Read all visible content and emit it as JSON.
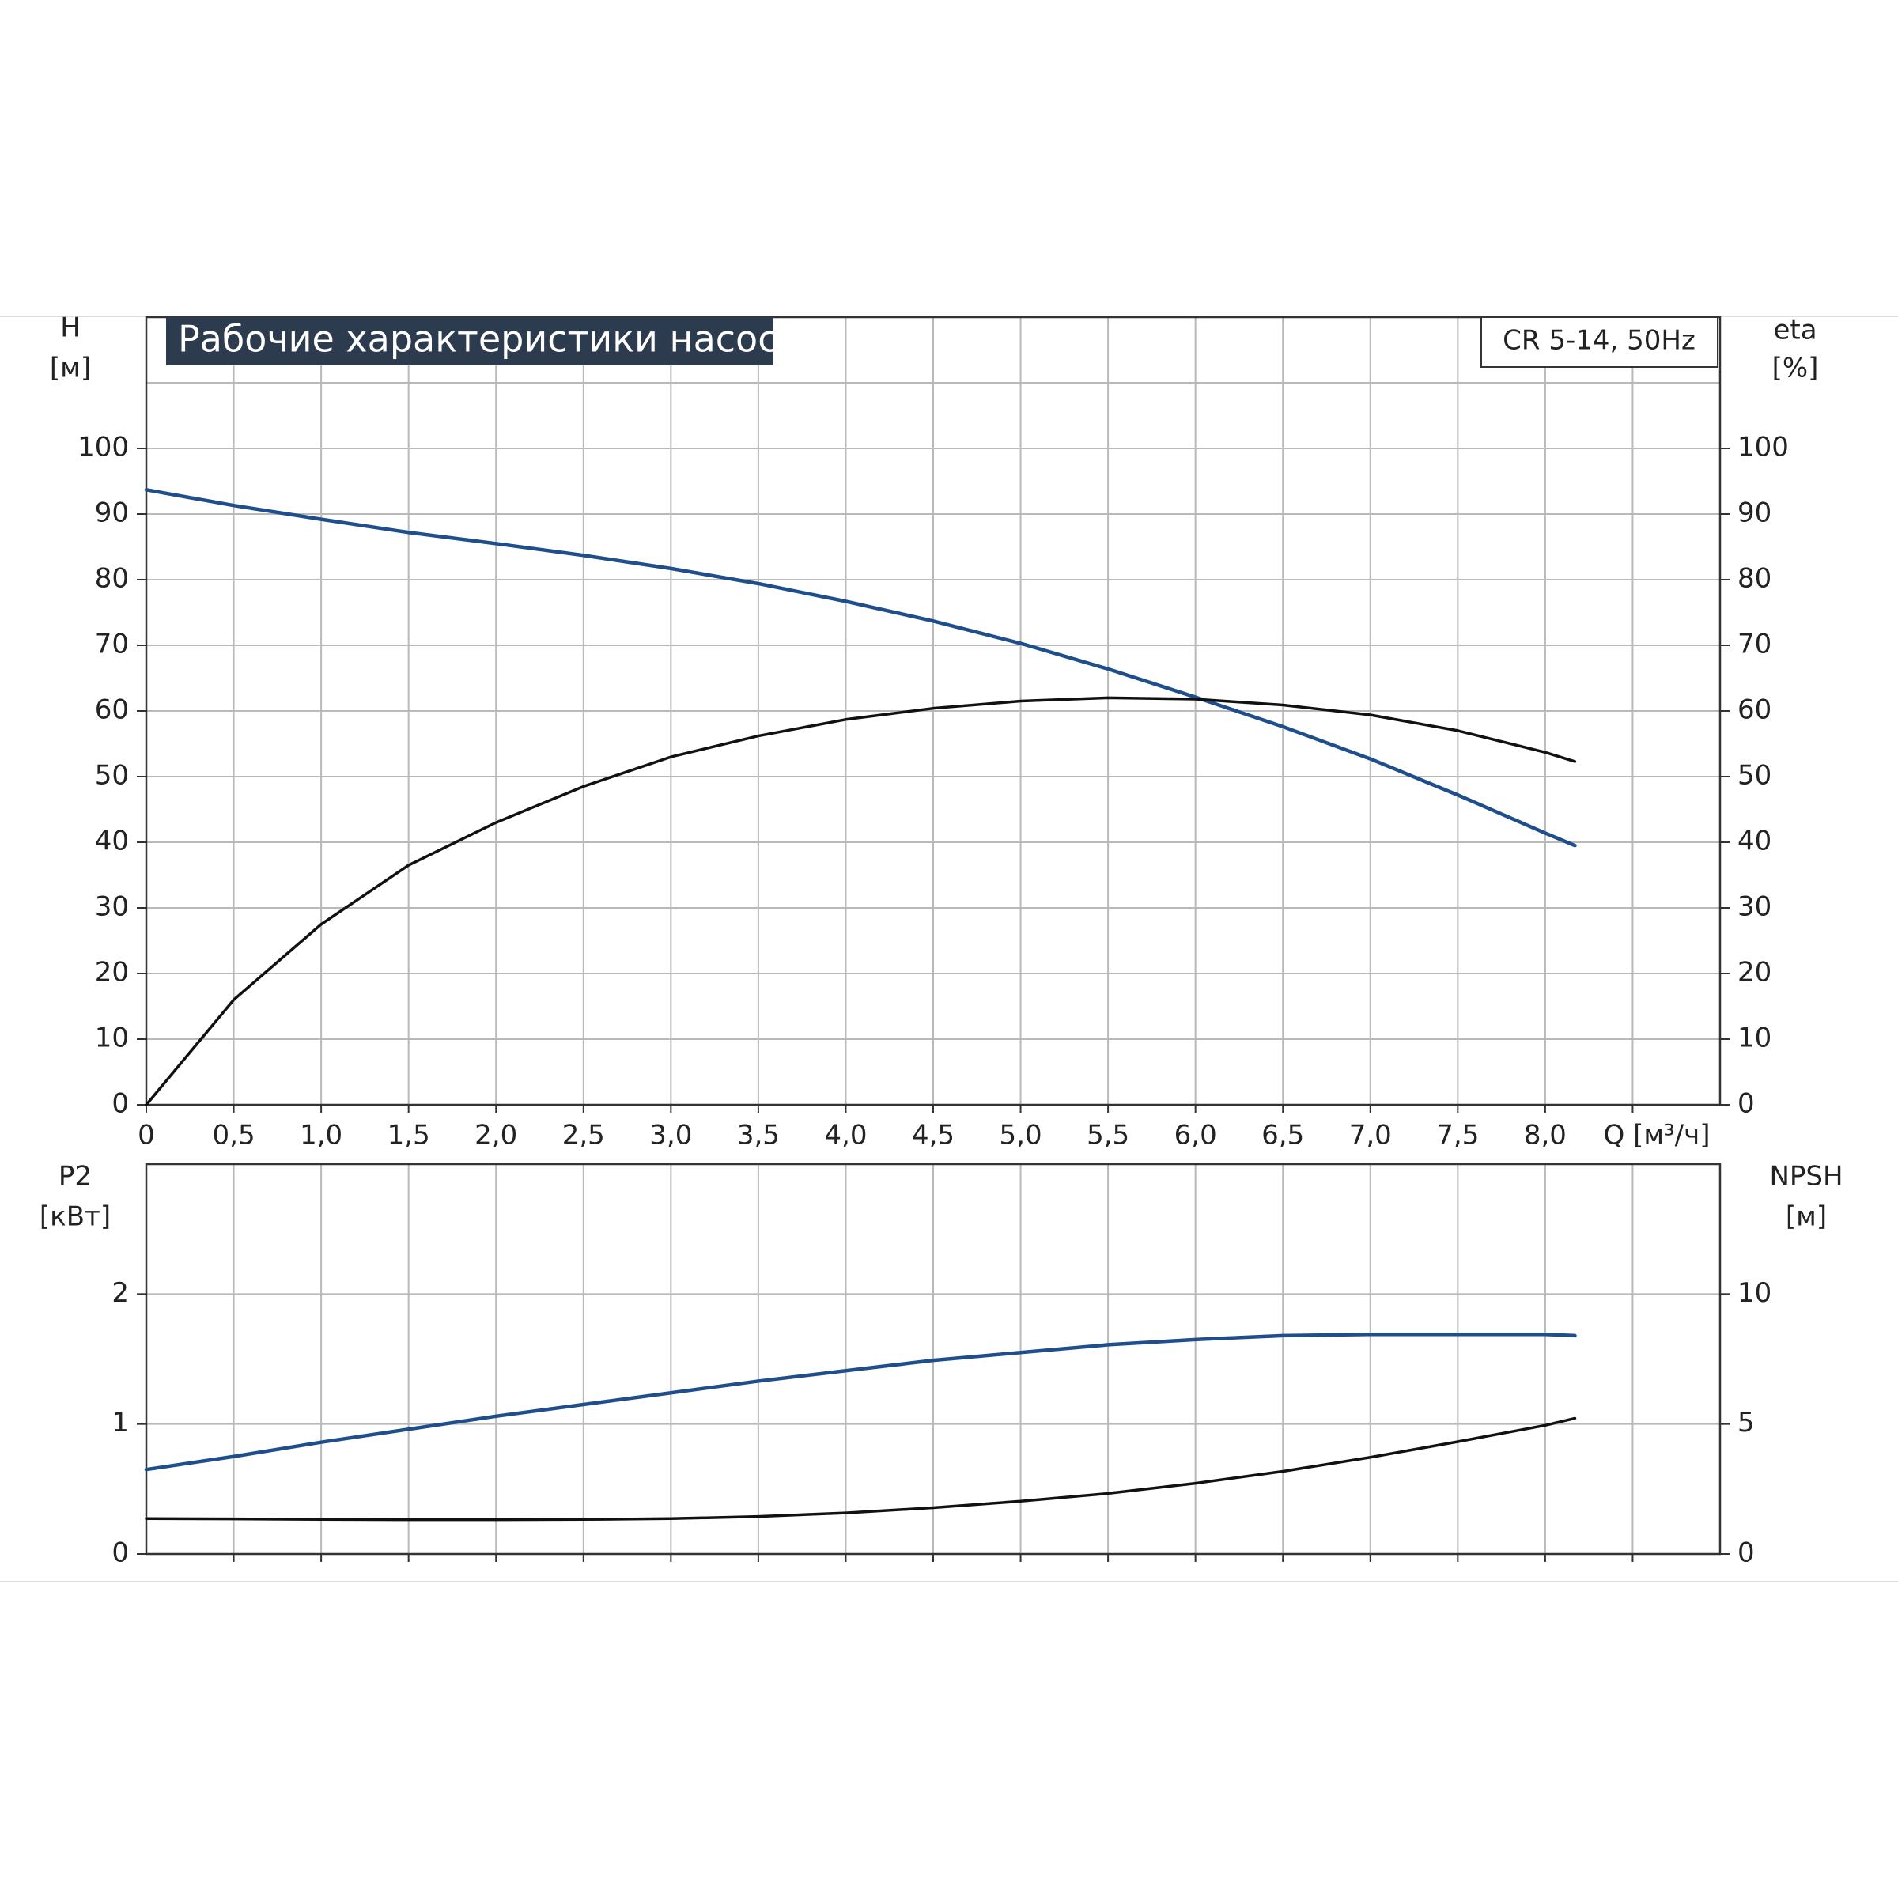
{
  "chart_data": [
    {
      "type": "line",
      "title": "Рабочие характеристики насоса",
      "annotation": "CR 5-14, 50Hz",
      "ylabel": "H",
      "yunit": "[м]",
      "y2label": "eta",
      "y2unit": "[%]",
      "xlabel": "Q [м³/ч]",
      "x": [
        0,
        0.5,
        1,
        1.5,
        2,
        2.5,
        3,
        3.5,
        4,
        4.5,
        5,
        5.5,
        6,
        6.5,
        7,
        7.5,
        8,
        8.17
      ],
      "xlim": [
        0,
        9
      ],
      "xticks": [
        0,
        {
          "value": 0.5,
          "label": "0,5"
        },
        {
          "value": 1,
          "label": "1,0"
        },
        {
          "value": 1.5,
          "label": "1,5"
        },
        {
          "value": 2,
          "label": "2,0"
        },
        {
          "value": 2.5,
          "label": "2,5"
        },
        {
          "value": 3,
          "label": "3,0"
        },
        {
          "value": 3.5,
          "label": "3,5"
        },
        {
          "value": 4,
          "label": "4,0"
        },
        {
          "value": 4.5,
          "label": "4,5"
        },
        {
          "value": 5,
          "label": "5,0"
        },
        {
          "value": 5.5,
          "label": "5,5"
        },
        {
          "value": 6,
          "label": "6,0"
        },
        {
          "value": 6.5,
          "label": "6,5"
        },
        {
          "value": 7,
          "label": "7,0"
        },
        {
          "value": 7.5,
          "label": "7,5"
        },
        {
          "value": 8,
          "label": "8,0"
        },
        {
          "value": 8.5,
          "label": null
        }
      ],
      "ylim": [
        0,
        120
      ],
      "yticks": [
        0,
        10,
        20,
        30,
        40,
        50,
        60,
        70,
        80,
        90,
        100,
        {
          "value": 110,
          "label": null
        }
      ],
      "y2lim": [
        0,
        120
      ],
      "y2ticks": [
        0,
        10,
        20,
        30,
        40,
        50,
        60,
        70,
        80,
        90,
        100
      ],
      "grid": true,
      "series": [
        {
          "name": "H",
          "color": "#1f4e8c",
          "values": [
            93.7,
            91.3,
            89.2,
            87.2,
            85.5,
            83.7,
            81.7,
            79.4,
            76.7,
            73.7,
            70.3,
            66.4,
            62.1,
            57.6,
            52.7,
            47.2,
            41.4,
            39.5
          ]
        },
        {
          "name": "eta",
          "color": "#111111",
          "axis": "y2",
          "values": [
            0,
            16,
            27.5,
            36.5,
            43,
            48.5,
            53,
            56.2,
            58.7,
            60.4,
            61.5,
            62,
            61.8,
            60.9,
            59.4,
            57,
            53.7,
            52.3
          ]
        }
      ]
    },
    {
      "type": "line",
      "ylabel": "P2",
      "yunit": "[кВт]",
      "y2label": "NPSH",
      "y2unit": "[м]",
      "x": [
        0,
        0.5,
        1,
        1.5,
        2,
        2.5,
        3,
        3.5,
        4,
        4.5,
        5,
        5.5,
        6,
        6.5,
        7,
        7.5,
        8,
        8.17
      ],
      "xlim": [
        0,
        9
      ],
      "xticks": [
        {
          "value": 0.5,
          "label": null
        },
        {
          "value": 1,
          "label": null
        },
        {
          "value": 1.5,
          "label": null
        },
        {
          "value": 2,
          "label": null
        },
        {
          "value": 2.5,
          "label": null
        },
        {
          "value": 3,
          "label": null
        },
        {
          "value": 3.5,
          "label": null
        },
        {
          "value": 4,
          "label": null
        },
        {
          "value": 4.5,
          "label": null
        },
        {
          "value": 5,
          "label": null
        },
        {
          "value": 5.5,
          "label": null
        },
        {
          "value": 6,
          "label": null
        },
        {
          "value": 6.5,
          "label": null
        },
        {
          "value": 7,
          "label": null
        },
        {
          "value": 7.5,
          "label": null
        },
        {
          "value": 8,
          "label": null
        },
        {
          "value": 8.5,
          "label": null
        }
      ],
      "ylim": [
        0,
        3
      ],
      "yticks": [
        0,
        1,
        2
      ],
      "y2lim": [
        0,
        15
      ],
      "y2ticks": [
        0,
        5,
        10
      ],
      "grid": true,
      "series": [
        {
          "name": "P2",
          "color": "#1f4e8c",
          "values": [
            0.65,
            0.75,
            0.86,
            0.96,
            1.06,
            1.15,
            1.24,
            1.33,
            1.41,
            1.49,
            1.55,
            1.61,
            1.65,
            1.68,
            1.69,
            1.69,
            1.69,
            1.68
          ]
        },
        {
          "name": "NPSH",
          "color": "#111111",
          "axis": "y2",
          "values": [
            1.36,
            1.35,
            1.33,
            1.32,
            1.32,
            1.33,
            1.36,
            1.44,
            1.58,
            1.78,
            2.03,
            2.33,
            2.72,
            3.18,
            3.72,
            4.32,
            4.95,
            5.22
          ]
        }
      ]
    }
  ]
}
